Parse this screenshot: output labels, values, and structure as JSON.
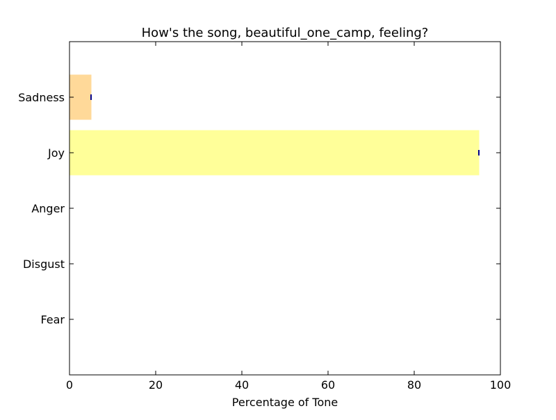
{
  "chart_data": {
    "type": "bar",
    "orientation": "horizontal",
    "title": "How's the song, beautiful_one_camp, feeling?",
    "xlabel": "Percentage of Tone",
    "ylabel": "",
    "categories": [
      "Sadness",
      "Joy",
      "Anger",
      "Disgust",
      "Fear"
    ],
    "values": [
      5,
      95,
      0,
      0,
      0
    ],
    "xlim": [
      0,
      100
    ],
    "xticks": [
      "0",
      "20",
      "40",
      "60",
      "80",
      "100"
    ],
    "grid": false,
    "legend": "none",
    "colors": {
      "Sadness": "#ffd999",
      "Joy": "#ffff99",
      "Anger": "#ff9999",
      "Disgust": "#99cc99",
      "Fear": "#9999ff"
    },
    "error_marker_color": "#00008b"
  }
}
